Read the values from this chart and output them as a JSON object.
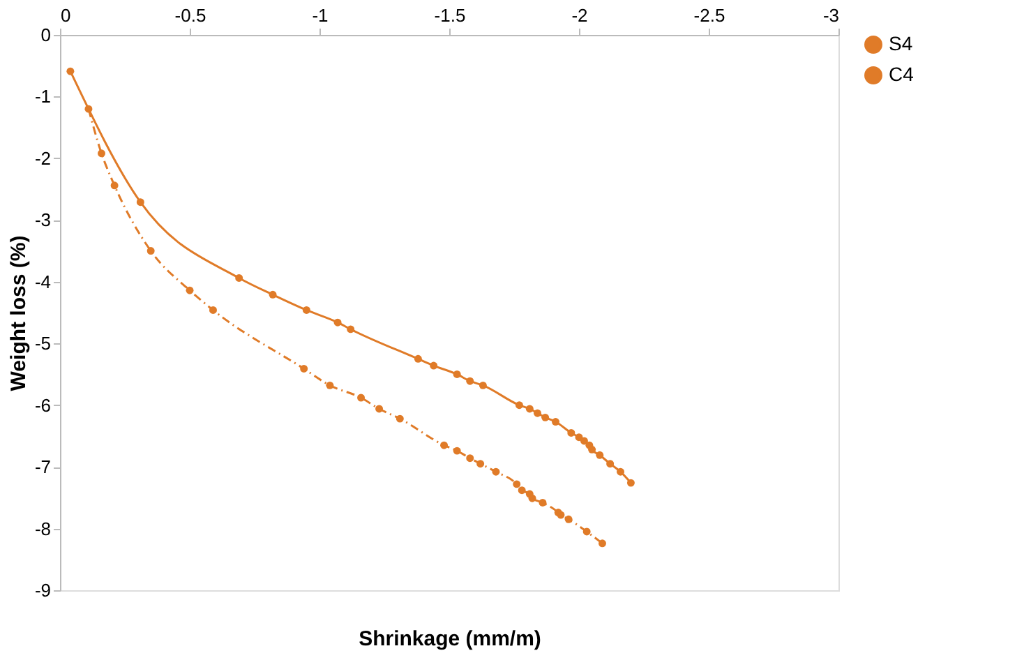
{
  "chart_data": {
    "type": "line",
    "xlabel": "Shrinkage (mm/m)",
    "ylabel": "Weight loss (%)",
    "xlim": [
      0,
      -3
    ],
    "xticks": [
      0,
      -0.5,
      -1,
      -1.5,
      -2,
      -2.5,
      -3
    ],
    "ylim": [
      -9,
      0
    ],
    "yticks": [
      0,
      -1,
      -2,
      -3,
      -4,
      -5,
      -6,
      -7,
      -8,
      -9
    ],
    "grid": false,
    "legend": "right",
    "marker": "circle",
    "series": [
      {
        "name": "S4",
        "color": "#e07b28",
        "line_style": "solid",
        "x": [
          -0.04,
          -0.31,
          -0.69,
          -0.82,
          -0.95,
          -1.07,
          -1.12,
          -1.38,
          -1.44,
          -1.53,
          -1.58,
          -1.63,
          -1.77,
          -1.81,
          -1.84,
          -1.87,
          -1.91,
          -1.97,
          -2.0,
          -2.02,
          -2.04,
          -2.05,
          -2.08,
          -2.12,
          -2.16,
          -2.2
        ],
        "values": [
          -0.59,
          -2.71,
          -3.94,
          -4.21,
          -4.46,
          -4.66,
          -4.77,
          -5.25,
          -5.36,
          -5.5,
          -5.61,
          -5.68,
          -6.0,
          -6.06,
          -6.13,
          -6.2,
          -6.27,
          -6.45,
          -6.52,
          -6.58,
          -6.65,
          -6.72,
          -6.81,
          -6.95,
          -7.08,
          -7.26
        ]
      },
      {
        "name": "C4",
        "color": "#e07b28",
        "line_style": "dashed",
        "x": [
          -0.11,
          -0.16,
          -0.21,
          -0.35,
          -0.5,
          -0.59,
          -0.94,
          -1.04,
          -1.16,
          -1.23,
          -1.31,
          -1.48,
          -1.53,
          -1.58,
          -1.62,
          -1.68,
          -1.76,
          -1.78,
          -1.81,
          -1.82,
          -1.86,
          -1.92,
          -1.93,
          -1.96,
          -2.03,
          -2.09
        ],
        "values": [
          -1.2,
          -1.92,
          -2.44,
          -3.5,
          -4.14,
          -4.46,
          -5.41,
          -5.68,
          -5.88,
          -6.06,
          -6.22,
          -6.65,
          -6.74,
          -6.86,
          -6.95,
          -7.08,
          -7.28,
          -7.38,
          -7.44,
          -7.51,
          -7.58,
          -7.74,
          -7.78,
          -7.85,
          -8.05,
          -8.24
        ]
      }
    ]
  }
}
